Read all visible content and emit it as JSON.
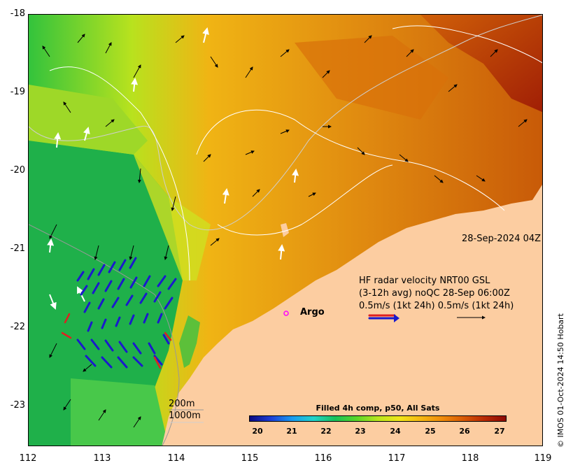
{
  "axes": {
    "x_ticks": [
      "112",
      "113",
      "114",
      "115",
      "116",
      "117",
      "118",
      "119"
    ],
    "y_ticks": [
      "-18",
      "-19",
      "-20",
      "-21",
      "-22",
      "-23"
    ]
  },
  "timestamp": "28-Sep-2024 04Z",
  "hf_radar": {
    "line1": "HF radar velocity  NRT00 GSL",
    "line2": "(3-12h avg) noQC 28-Sep 06:00Z",
    "line3": "0.5m/s (1kt 24h)  0.5m/s (1kt 24h)"
  },
  "argo_label": "Argo",
  "depth": {
    "line1": "200m",
    "line2": "1000m"
  },
  "colorbar": {
    "title": "Filled 4h comp, p50, All Sats",
    "ticks": [
      "20",
      "21",
      "22",
      "23",
      "24",
      "25",
      "26",
      "27"
    ]
  },
  "credit": "© IMOS 01-Oct-2024 14:50 Hobart",
  "colors": {
    "land": "#fccda1",
    "warm": "#e07a0a",
    "cool": "#2ec24a",
    "radar_arrow": "#1a1acc",
    "argo": "#ff00ff"
  }
}
